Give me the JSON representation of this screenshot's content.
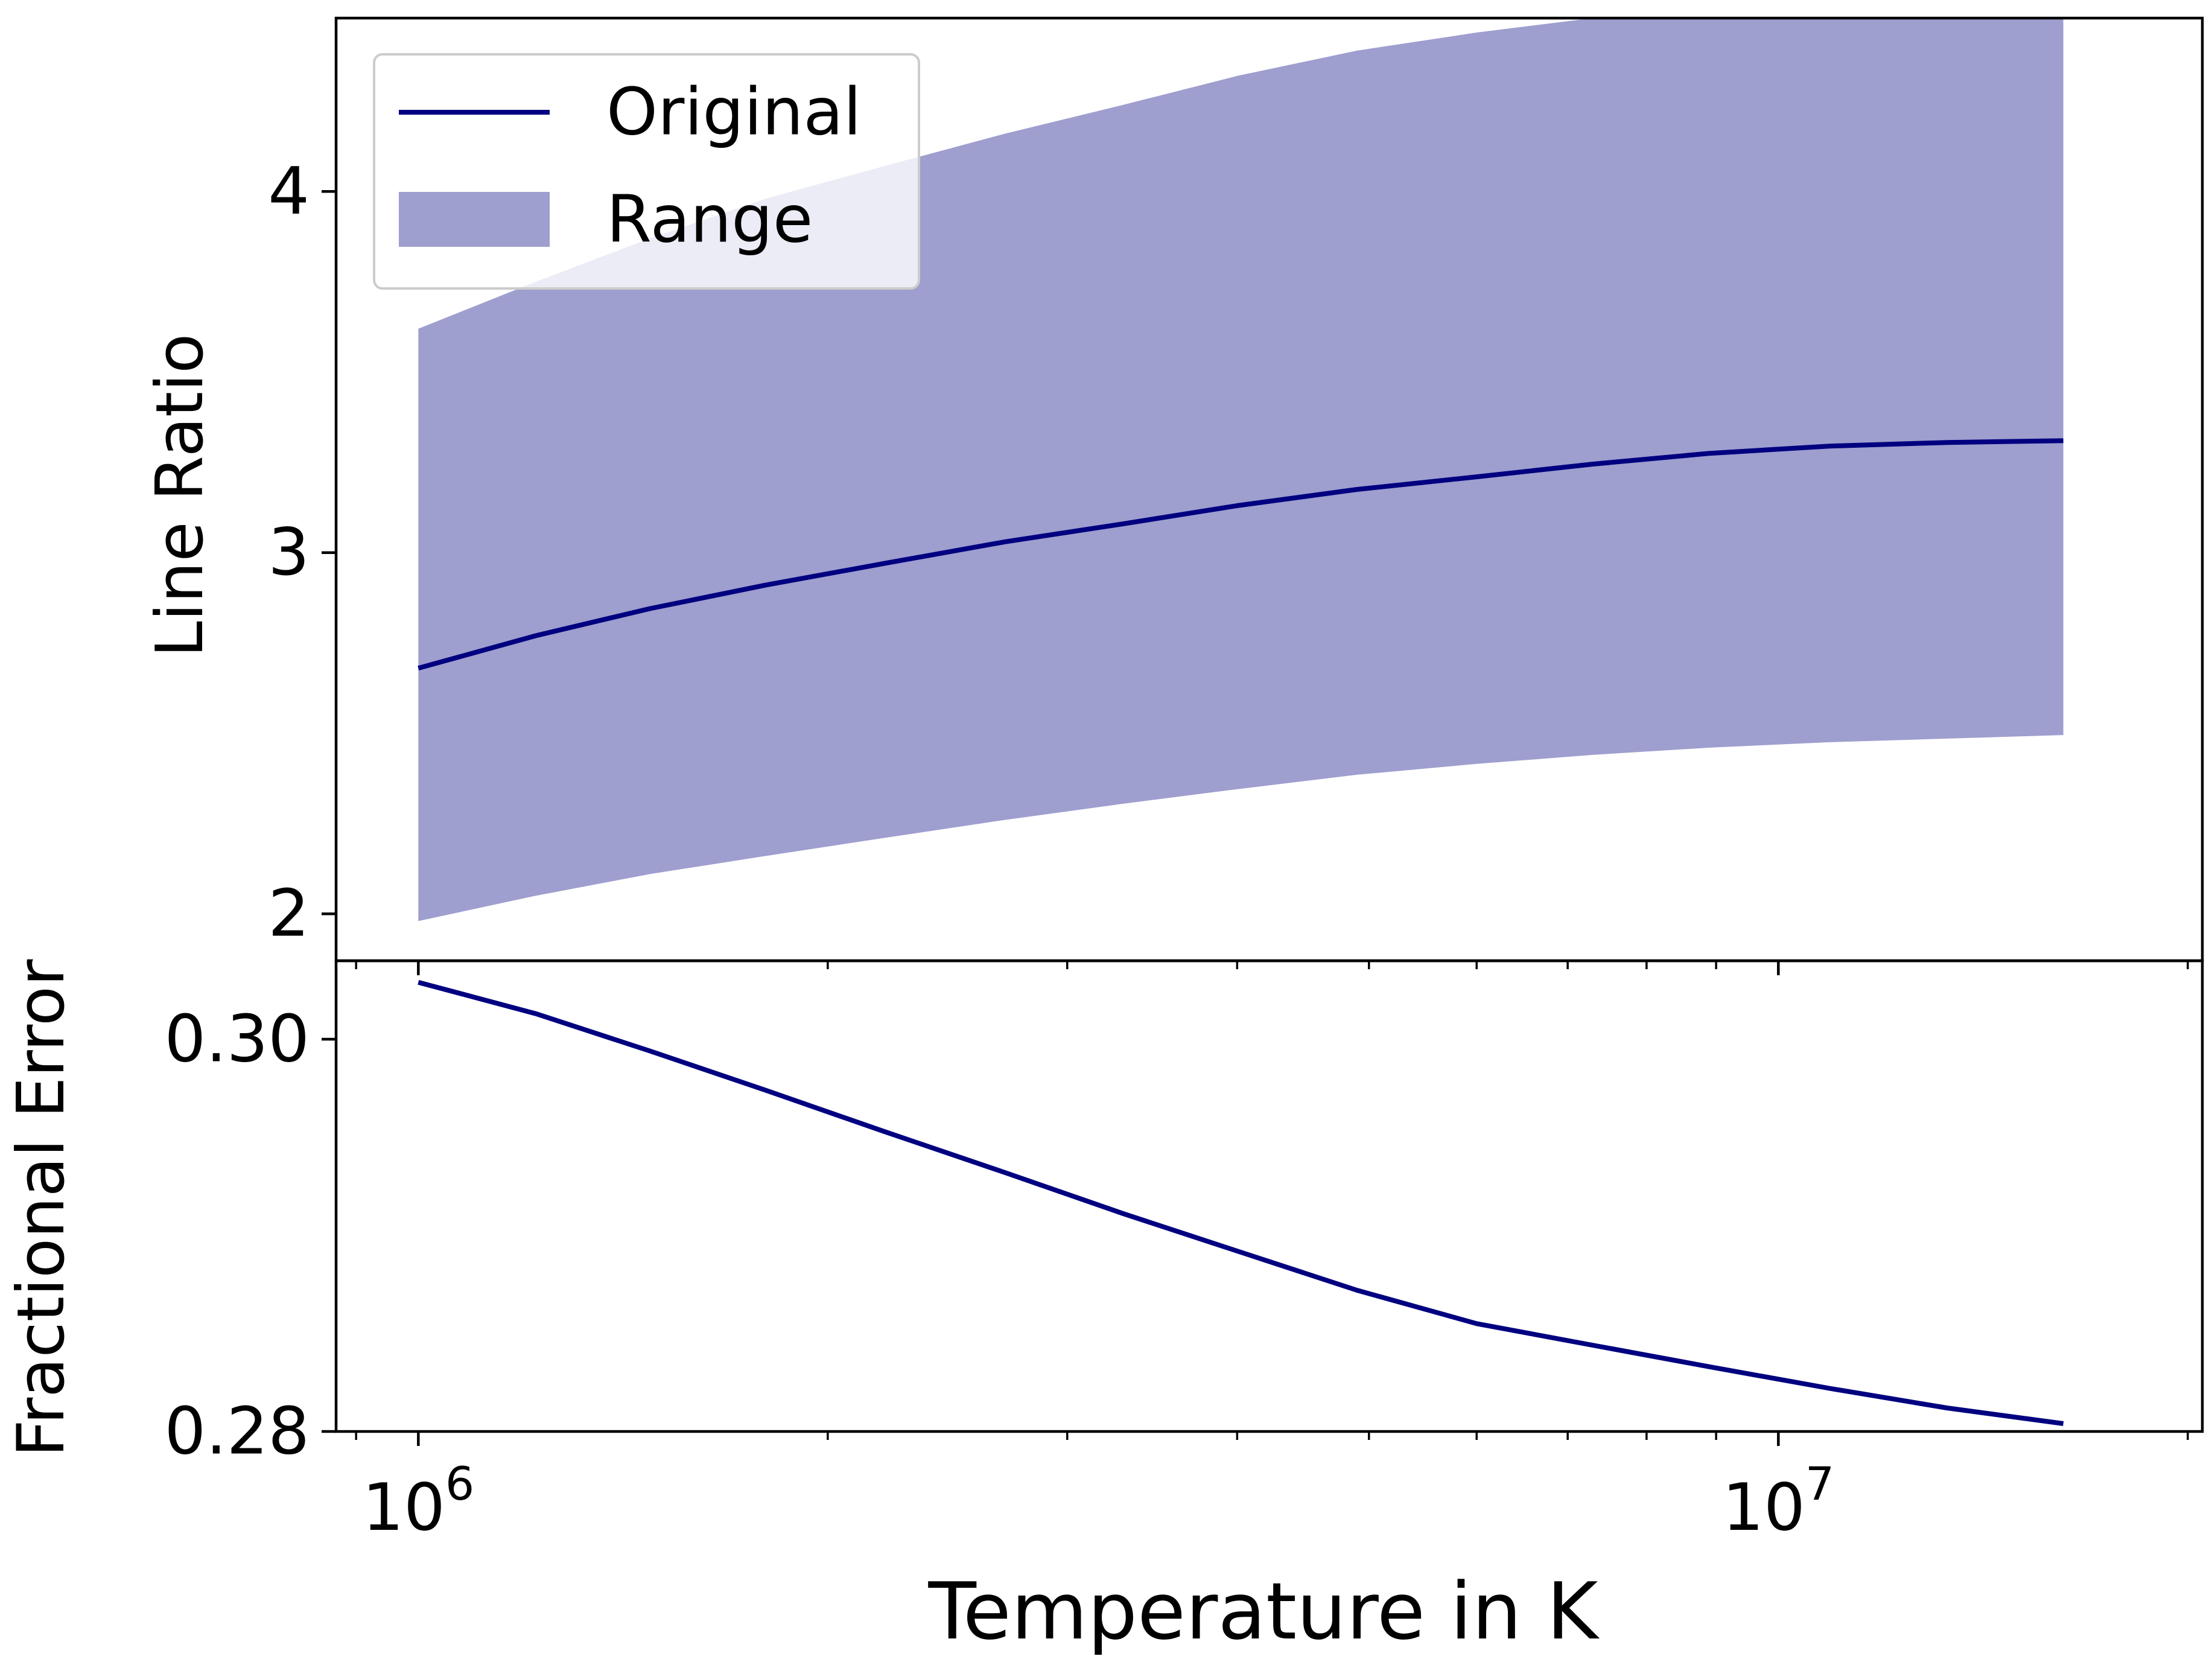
{
  "chart_data": [
    {
      "type": "line",
      "panel": "top",
      "title": "",
      "xlabel": "",
      "ylabel": "Line Ratio",
      "xscale": "log",
      "xlim": [
        870000,
        20500000
      ],
      "ylim": [
        1.87,
        4.48
      ],
      "yticks": [
        {
          "value": 2,
          "label": "2"
        },
        {
          "value": 3,
          "label": "3"
        },
        {
          "value": 4,
          "label": "4"
        }
      ],
      "legend": {
        "position": "top-left",
        "entries": [
          {
            "label": "Original",
            "kind": "line"
          },
          {
            "label": "Range",
            "kind": "patch"
          }
        ]
      },
      "colors": {
        "line": "#000080",
        "band": "#9e9ecf"
      },
      "x": [
        1000000,
        1220000,
        1480000,
        1800000,
        2200000,
        2700000,
        3300000,
        4000000,
        4900000,
        6000000,
        7300000,
        8900000,
        10900000,
        13300000,
        16200000
      ],
      "series": [
        {
          "name": "Original",
          "values": [
            2.68,
            2.77,
            2.845,
            2.91,
            2.97,
            3.03,
            3.08,
            3.13,
            3.175,
            3.21,
            3.245,
            3.275,
            3.295,
            3.305,
            3.31
          ]
        }
      ],
      "band": {
        "name": "Range",
        "lower": [
          1.98,
          2.05,
          2.11,
          2.16,
          2.21,
          2.26,
          2.305,
          2.345,
          2.385,
          2.415,
          2.44,
          2.46,
          2.475,
          2.485,
          2.495
        ],
        "upper": [
          3.62,
          3.75,
          3.87,
          3.98,
          4.07,
          4.16,
          4.24,
          4.32,
          4.39,
          4.44,
          4.48,
          4.51,
          4.53,
          4.535,
          4.54
        ]
      }
    },
    {
      "type": "line",
      "panel": "bottom",
      "title": "",
      "xlabel": "Temperature in K",
      "ylabel": "Fractional Error",
      "xscale": "log",
      "xlim": [
        870000,
        20500000
      ],
      "ylim": [
        0.28,
        0.304
      ],
      "yticks": [
        {
          "value": 0.28,
          "label": "0.28"
        },
        {
          "value": 0.3,
          "label": "0.30"
        }
      ],
      "xticks": [
        {
          "value": 1000000,
          "base": "10",
          "exp": "6"
        },
        {
          "value": 10000000,
          "base": "10",
          "exp": "7"
        }
      ],
      "colors": {
        "line": "#000080"
      },
      "x": [
        1000000,
        1220000,
        1480000,
        1800000,
        2200000,
        2700000,
        3300000,
        4000000,
        4900000,
        6000000,
        7300000,
        8900000,
        10900000,
        13300000,
        16200000
      ],
      "series": [
        {
          "name": "Fractional Error",
          "values": [
            0.3029,
            0.3013,
            0.2994,
            0.2974,
            0.2953,
            0.2932,
            0.2911,
            0.2892,
            0.2872,
            0.2855,
            0.2844,
            0.2833,
            0.2822,
            0.2812,
            0.2804
          ]
        }
      ]
    }
  ]
}
